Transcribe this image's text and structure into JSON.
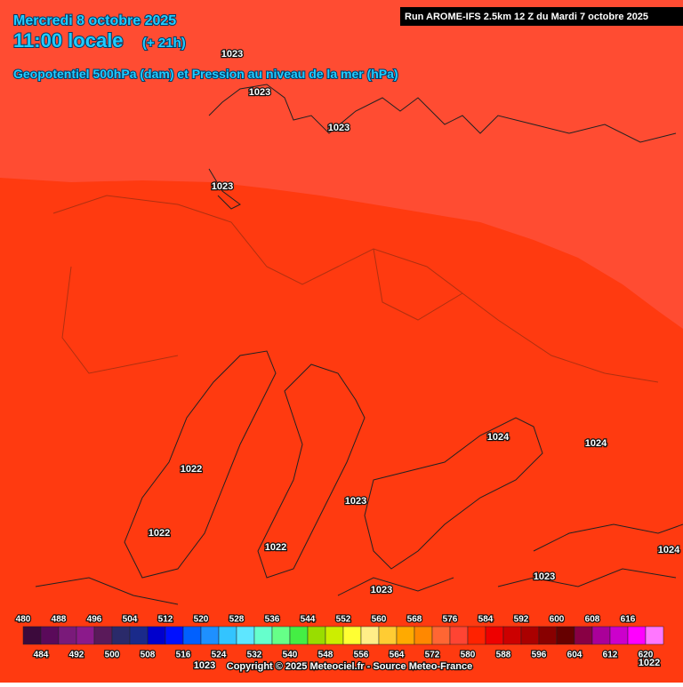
{
  "header": {
    "date": "Mercredi 8 octobre 2025",
    "time": "11:00 locale",
    "lead": "(+ 21h)",
    "subtitle": "Geopotentiel 500hPa (dam) et Pression au niveau de la mer (hPa)",
    "run": "Run AROME-IFS 2.5km 12 Z du Mardi 7 octobre 2025"
  },
  "isobar_labels": [
    "1023",
    "1023",
    "1023",
    "1023",
    "1024",
    "1024",
    "1022",
    "1022",
    "1023",
    "1022",
    "1023",
    "1023",
    "1024",
    "1023",
    "1022"
  ],
  "legend": {
    "values": [
      480,
      484,
      488,
      492,
      496,
      500,
      504,
      508,
      512,
      516,
      520,
      524,
      528,
      532,
      536,
      540,
      544,
      548,
      552,
      556,
      560,
      564,
      568,
      572,
      576,
      580,
      584,
      588,
      592,
      596,
      600,
      604,
      608,
      612,
      616,
      620
    ],
    "colors": [
      "#3c0a3c",
      "#5a0a5a",
      "#7a1a7a",
      "#8b1a8b",
      "#5a1a5a",
      "#2a2a6a",
      "#1a2a8a",
      "#0000cd",
      "#0010ff",
      "#0060ff",
      "#1e90ff",
      "#33c4ff",
      "#5ee6ff",
      "#66ffcc",
      "#66ff88",
      "#44ee44",
      "#99dd00",
      "#ccee00",
      "#ffff33",
      "#ffee88",
      "#ffcc33",
      "#ffaa00",
      "#ff8800",
      "#ff6633",
      "#ff4433",
      "#ff2200",
      "#ee0000",
      "#cc0000",
      "#aa0000",
      "#880000",
      "#660000",
      "#880044",
      "#aa0099",
      "#cc00cc",
      "#ff00ff",
      "#ff77ff"
    ]
  },
  "copyright": "Copyright © 2025 Meteociel.fr - Source Meteo-France"
}
